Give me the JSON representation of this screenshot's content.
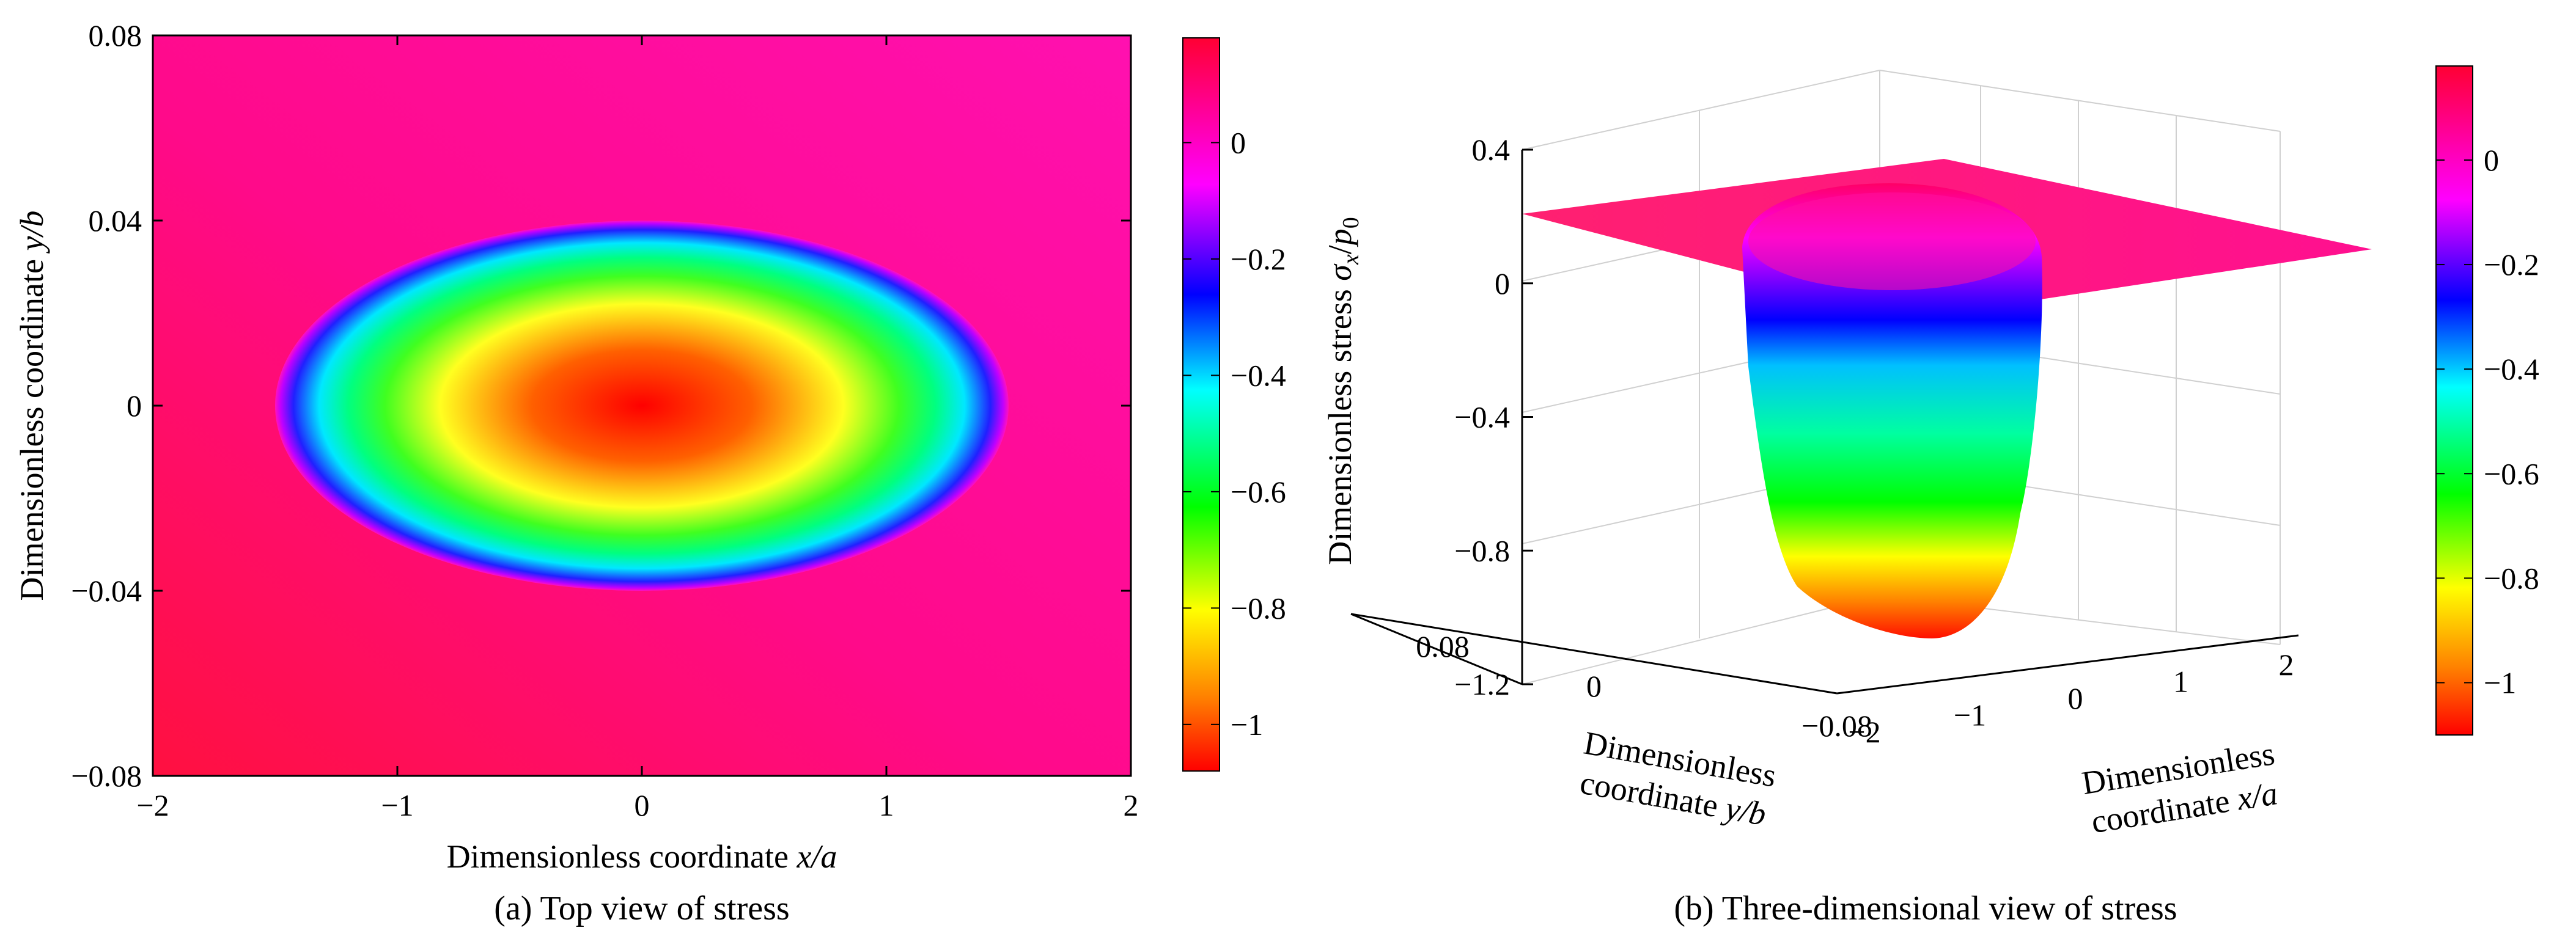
{
  "chart_data": [
    {
      "type": "heatmap",
      "panel": "a",
      "caption": "(a) Top view of stress",
      "xlabel": "Dimensionless coordinate x/a",
      "xlabel_text": "Dimensionless coordinate ",
      "xlabel_var": "x/a",
      "ylabel": "Dimensionless coordinate y/b",
      "ylabel_text": "Dimensionless coordinate ",
      "ylabel_var": "y/b",
      "xlim": [
        -2,
        2
      ],
      "ylim": [
        -0.08,
        0.08
      ],
      "xticks": [
        -2,
        -1,
        0,
        1,
        2
      ],
      "xtick_labels": [
        "−2",
        "−1",
        "0",
        "1",
        "2"
      ],
      "yticks": [
        -0.08,
        -0.04,
        0,
        0.04,
        0.08
      ],
      "ytick_labels": [
        "−0.08",
        "−0.04",
        "0",
        "0.04",
        "0.08"
      ],
      "contact_region": {
        "center_x": 0,
        "center_y": 0,
        "semi_axis_x": 1.5,
        "semi_axis_y": 0.04
      },
      "stress_range": [
        -1.05,
        0.18
      ],
      "min_stress_at_center": -1.05,
      "background_stress": 0.05,
      "colorbar": {
        "ticks": [
          0,
          -0.2,
          -0.4,
          -0.6,
          -0.8,
          -1
        ],
        "tick_labels": [
          "0",
          "−0.2",
          "−0.4",
          "−0.6",
          "−0.8",
          "−1"
        ],
        "range": [
          -1.08,
          0.18
        ]
      }
    },
    {
      "type": "surface3d",
      "panel": "b",
      "caption": "(b) Three-dimensional view of stress",
      "zlabel": "Dimensionless stress σx/p0",
      "zlabel_text": "Dimensionless stress ",
      "zlabel_var": "σ",
      "zlabel_sub1": "x",
      "zlabel_slash": "/",
      "zlabel_var2": "p",
      "zlabel_sub2": "0",
      "ylabel_line1": "Dimensionless",
      "ylabel_line2_text": "coordinate ",
      "ylabel_line2_var": "y/b",
      "xlabel_line1": "Dimensionless",
      "xlabel_line2_text": "coordinate ",
      "xlabel_line2_var": "x/a",
      "zlim": [
        -1.2,
        0.4
      ],
      "zticks": [
        0.4,
        0,
        -0.4,
        -0.8,
        -1.2
      ],
      "ztick_labels": [
        "0.4",
        "0",
        "−0.4",
        "−0.8",
        "−1.2"
      ],
      "yticks": [
        0.08,
        0,
        -0.08
      ],
      "ytick_labels": [
        "0.08",
        "0",
        "−0.08"
      ],
      "xticks": [
        -2,
        -1,
        0,
        1,
        2
      ],
      "xtick_labels": [
        "−2",
        "−1",
        "0",
        "1",
        "2"
      ],
      "surface_min": -1.1,
      "plateau_stress": 0.1,
      "colorbar": {
        "ticks": [
          0,
          -0.2,
          -0.4,
          -0.6,
          -0.8,
          -1
        ],
        "tick_labels": [
          "0",
          "−0.2",
          "−0.4",
          "−0.6",
          "−0.8",
          "−1"
        ],
        "range": [
          -1.1,
          0.18
        ]
      }
    }
  ],
  "colormap_hex": [
    "#ff0000",
    "#ff8000",
    "#ffff00",
    "#00ff00",
    "#00ffff",
    "#0000ff",
    "#ff00ff",
    "#ff0066"
  ]
}
